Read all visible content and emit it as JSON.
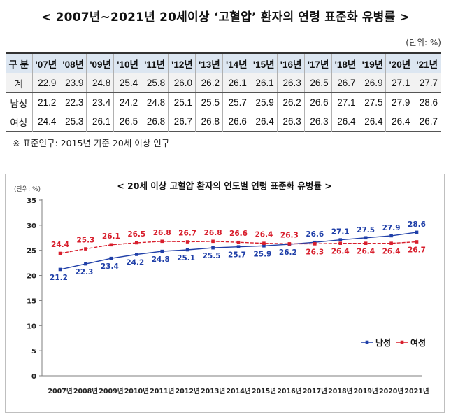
{
  "title": "< 2007년~2021년 20세이상 ‘고혈압’ 환자의 연령 표준화 유병률 >",
  "unit_label": "(단위: %)",
  "note": "※ 표준인구: 2015년 기준 20세 이상 인구",
  "table": {
    "header_label": "구 분",
    "columns": [
      "'07년",
      "'08년",
      "'09년",
      "'10년",
      "'11년",
      "'12년",
      "'13년",
      "'14년",
      "'15년",
      "'16년",
      "'17년",
      "'18년",
      "'19년",
      "'20년",
      "'21년"
    ],
    "rows": [
      {
        "label": "계",
        "values": [
          "22.9",
          "23.9",
          "24.8",
          "25.4",
          "25.8",
          "26.0",
          "26.2",
          "26.1",
          "26.1",
          "26.3",
          "26.5",
          "26.7",
          "26.9",
          "27.1",
          "27.7"
        ]
      },
      {
        "label": "남성",
        "values": [
          "21.2",
          "22.3",
          "23.4",
          "24.2",
          "24.8",
          "25.1",
          "25.5",
          "25.7",
          "25.9",
          "26.2",
          "26.6",
          "27.1",
          "27.5",
          "27.9",
          "28.6"
        ]
      },
      {
        "label": "여성",
        "values": [
          "24.4",
          "25.3",
          "26.1",
          "26.5",
          "26.8",
          "26.7",
          "26.8",
          "26.6",
          "26.4",
          "26.3",
          "26.3",
          "26.4",
          "26.4",
          "26.4",
          "26.7"
        ]
      }
    ]
  },
  "chart_data": {
    "type": "line",
    "title": "< 20세 이상 고혈압 환자의 연도별 연령 표준화 유병률 >",
    "ylabel": "(단위: %)",
    "xlabel": "",
    "categories": [
      "2007년",
      "2008년",
      "2009년",
      "2010년",
      "2011년",
      "2012년",
      "2013년",
      "2014년",
      "2015년",
      "2016년",
      "2017년",
      "2018년",
      "2019년",
      "2020년",
      "2021년"
    ],
    "ylim": [
      0,
      35
    ],
    "yticks": [
      0,
      5,
      10,
      15,
      20,
      25,
      30,
      35
    ],
    "grid": false,
    "legend_position": "bottom-right",
    "series": [
      {
        "name": "남성",
        "color": "#1f3fa8",
        "marker": "square",
        "label_position": "below-left-then-above",
        "values": [
          21.2,
          22.3,
          23.4,
          24.2,
          24.8,
          25.1,
          25.5,
          25.7,
          25.9,
          26.2,
          26.6,
          27.1,
          27.5,
          27.9,
          28.6
        ]
      },
      {
        "name": "여성",
        "color": "#d81e2c",
        "marker": "square",
        "values": [
          24.4,
          25.3,
          26.1,
          26.5,
          26.8,
          26.7,
          26.8,
          26.6,
          26.4,
          26.3,
          26.3,
          26.4,
          26.4,
          26.4,
          26.7
        ]
      }
    ]
  }
}
